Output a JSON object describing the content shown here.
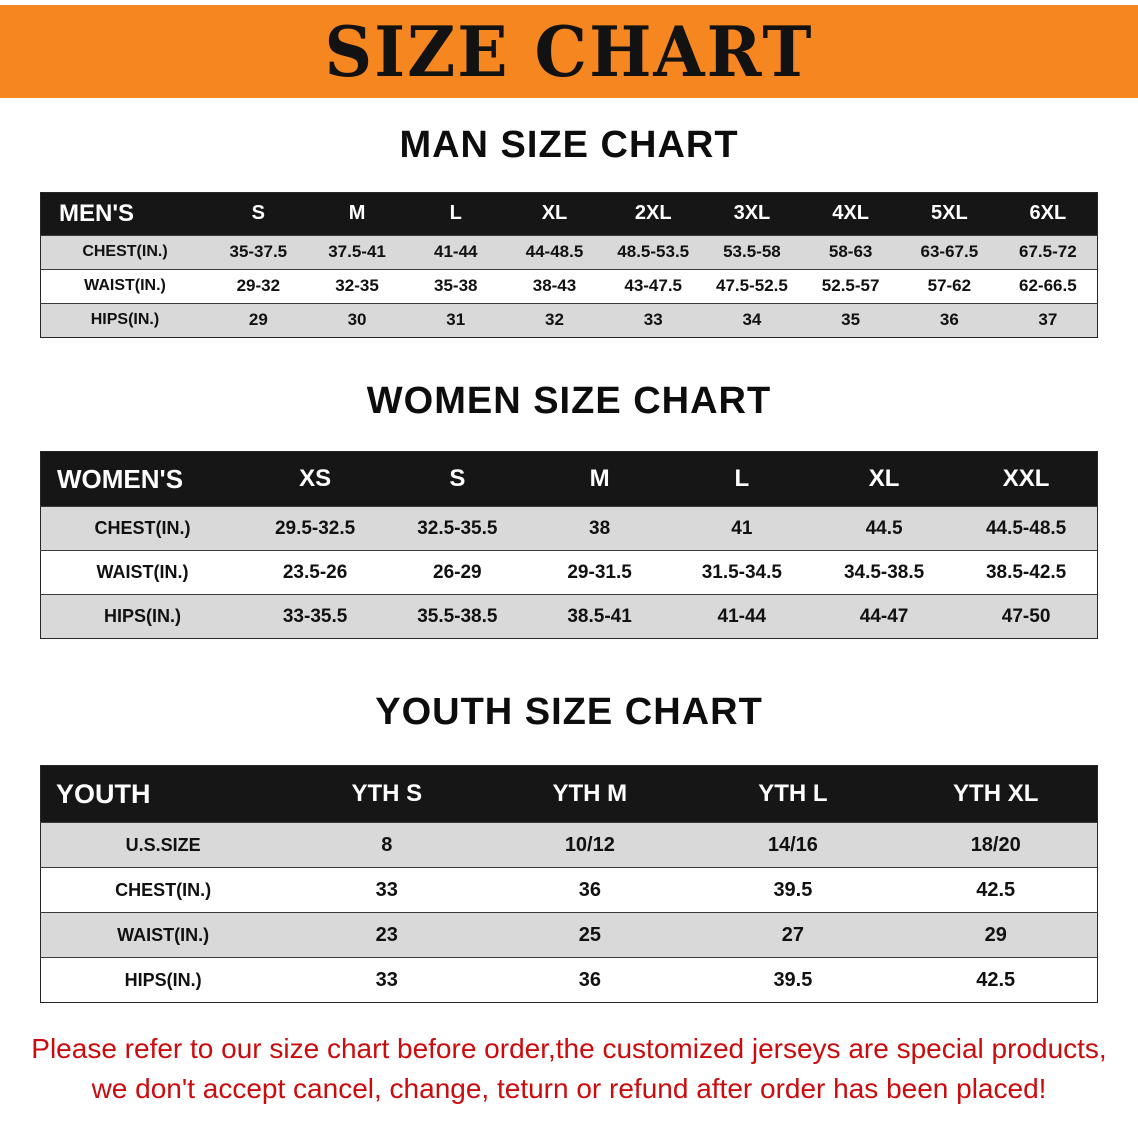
{
  "banner": {
    "title": "SIZE CHART"
  },
  "colors": {
    "banner_bg": "#f6861f",
    "header_bg": "#161616",
    "stripe": "#d9d9d9",
    "disclaimer": "#cb0c0e"
  },
  "sections": [
    {
      "heading": "MAN SIZE CHART",
      "label": "MEN'S",
      "columns": [
        "S",
        "M",
        "L",
        "XL",
        "2XL",
        "3XL",
        "4XL",
        "5XL",
        "6XL"
      ],
      "rows": [
        {
          "label": "CHEST(IN.)",
          "values": [
            "35-37.5",
            "37.5-41",
            "41-44",
            "44-48.5",
            "48.5-53.5",
            "53.5-58",
            "58-63",
            "63-67.5",
            "67.5-72"
          ]
        },
        {
          "label": "WAIST(IN.)",
          "values": [
            "29-32",
            "32-35",
            "35-38",
            "38-43",
            "43-47.5",
            "47.5-52.5",
            "52.5-57",
            "57-62",
            "62-66.5"
          ]
        },
        {
          "label": "HIPS(IN.)",
          "values": [
            "29",
            "30",
            "31",
            "32",
            "33",
            "34",
            "35",
            "36",
            "37"
          ]
        }
      ]
    },
    {
      "heading": "WOMEN SIZE CHART",
      "label": "WOMEN'S",
      "columns": [
        "XS",
        "S",
        "M",
        "L",
        "XL",
        "XXL"
      ],
      "rows": [
        {
          "label": "CHEST(IN.)",
          "values": [
            "29.5-32.5",
            "32.5-35.5",
            "38",
            "41",
            "44.5",
            "44.5-48.5"
          ]
        },
        {
          "label": "WAIST(IN.)",
          "values": [
            "23.5-26",
            "26-29",
            "29-31.5",
            "31.5-34.5",
            "34.5-38.5",
            "38.5-42.5"
          ]
        },
        {
          "label": "HIPS(IN.)",
          "values": [
            "33-35.5",
            "35.5-38.5",
            "38.5-41",
            "41-44",
            "44-47",
            "47-50"
          ]
        }
      ]
    },
    {
      "heading": "YOUTH SIZE CHART",
      "label": "YOUTH",
      "columns": [
        "YTH S",
        "YTH M",
        "YTH L",
        "YTH XL"
      ],
      "rows": [
        {
          "label": "U.S.SIZE",
          "values": [
            "8",
            "10/12",
            "14/16",
            "18/20"
          ]
        },
        {
          "label": "CHEST(IN.)",
          "values": [
            "33",
            "36",
            "39.5",
            "42.5"
          ]
        },
        {
          "label": "WAIST(IN.)",
          "values": [
            "23",
            "25",
            "27",
            "29"
          ]
        },
        {
          "label": "HIPS(IN.)",
          "values": [
            "33",
            "36",
            "39.5",
            "42.5"
          ]
        }
      ]
    }
  ],
  "disclaimer": {
    "line1": "Please refer to our size chart before order,the customized jerseys are special products,",
    "line2": "we don't accept cancel, change, teturn or refund after order has been placed!"
  }
}
